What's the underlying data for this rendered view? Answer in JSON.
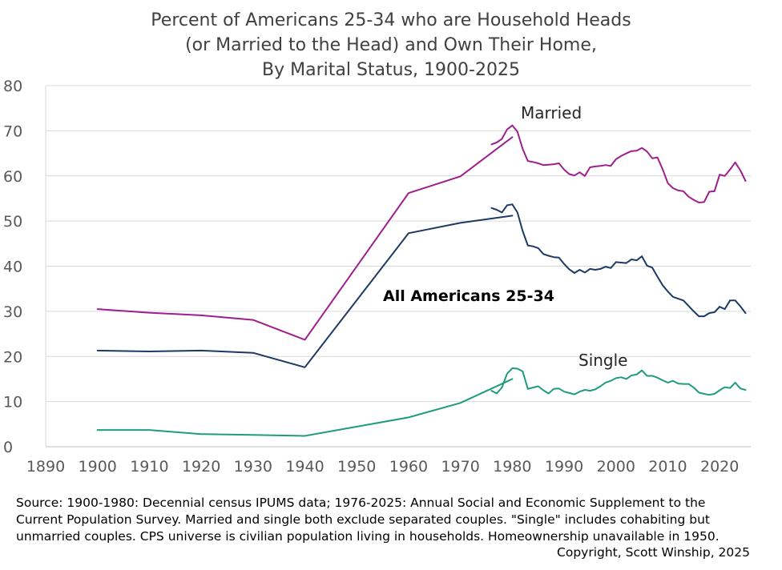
{
  "chart_data": {
    "type": "line",
    "title": [
      "Percent of Americans 25-34 who are Household Heads",
      "(or Married to the Head) and Own Their Home,",
      "By Marital Status, 1900-2025"
    ],
    "xlabel": "",
    "ylabel": "",
    "xlim": [
      1890,
      2026
    ],
    "ylim": [
      0,
      80
    ],
    "xticks": [
      1890,
      1900,
      1910,
      1920,
      1930,
      1940,
      1950,
      1960,
      1970,
      1980,
      1990,
      2000,
      2010,
      2020
    ],
    "yticks": [
      0,
      10,
      20,
      30,
      40,
      50,
      60,
      70,
      80
    ],
    "grid": "horizontal",
    "series": [
      {
        "name": "Married",
        "label": "Married",
        "color": "#9e1f8c",
        "segments": [
          {
            "source": "census",
            "x": [
              1900,
              1910,
              1920,
              1930,
              1940,
              1960,
              1970,
              1980
            ],
            "y": [
              30.5,
              29.7,
              29.1,
              28.1,
              23.7,
              56.2,
              59.9,
              68.6
            ]
          },
          {
            "source": "cps",
            "x": [
              1976,
              1977,
              1978,
              1979,
              1980,
              1981,
              1982,
              1983,
              1984,
              1985,
              1986,
              1987,
              1988,
              1989,
              1990,
              1991,
              1992,
              1993,
              1994,
              1995,
              1996,
              1997,
              1998,
              1999,
              2000,
              2001,
              2002,
              2003,
              2004,
              2005,
              2006,
              2007,
              2008,
              2009,
              2010,
              2011,
              2012,
              2013,
              2014,
              2015,
              2016,
              2017,
              2018,
              2019,
              2020,
              2021,
              2022,
              2023,
              2024,
              2025
            ],
            "y": [
              67.0,
              67.4,
              68.2,
              70.3,
              71.2,
              69.8,
              66.0,
              63.3,
              63.1,
              62.8,
              62.4,
              62.5,
              62.6,
              62.8,
              61.4,
              60.4,
              60.1,
              60.8,
              60.0,
              61.9,
              62.1,
              62.2,
              62.4,
              62.2,
              63.7,
              64.4,
              65.0,
              65.5,
              65.6,
              66.2,
              65.4,
              63.9,
              64.1,
              61.5,
              58.4,
              57.3,
              56.8,
              56.6,
              55.4,
              54.7,
              54.1,
              54.2,
              56.5,
              56.6,
              60.3,
              60.0,
              61.4,
              63.0,
              61.2,
              58.9
            ]
          }
        ]
      },
      {
        "name": "All Americans 25-34",
        "label": "All Americans 25-34",
        "color": "#1b3a64",
        "segments": [
          {
            "source": "census",
            "x": [
              1900,
              1910,
              1920,
              1930,
              1940,
              1960,
              1970,
              1980
            ],
            "y": [
              21.3,
              21.1,
              21.3,
              20.8,
              17.6,
              47.3,
              49.6,
              51.2
            ]
          },
          {
            "source": "cps",
            "x": [
              1976,
              1977,
              1978,
              1979,
              1980,
              1981,
              1982,
              1983,
              1984,
              1985,
              1986,
              1987,
              1988,
              1989,
              1990,
              1991,
              1992,
              1993,
              1994,
              1995,
              1996,
              1997,
              1998,
              1999,
              2000,
              2001,
              2002,
              2003,
              2004,
              2005,
              2006,
              2007,
              2008,
              2009,
              2010,
              2011,
              2012,
              2013,
              2014,
              2015,
              2016,
              2017,
              2018,
              2019,
              2020,
              2021,
              2022,
              2023,
              2024,
              2025
            ],
            "y": [
              52.9,
              52.5,
              51.9,
              53.5,
              53.7,
              51.9,
              47.8,
              44.6,
              44.4,
              44.0,
              42.7,
              42.3,
              42.0,
              41.9,
              40.5,
              39.3,
              38.5,
              39.2,
              38.6,
              39.4,
              39.2,
              39.4,
              39.9,
              39.6,
              40.9,
              40.8,
              40.7,
              41.5,
              41.3,
              42.2,
              40.1,
              39.7,
              37.7,
              35.8,
              34.4,
              33.2,
              32.8,
              32.4,
              31.2,
              30.0,
              28.9,
              28.9,
              29.6,
              29.8,
              31.0,
              30.5,
              32.4,
              32.4,
              31.1,
              29.6
            ]
          }
        ]
      },
      {
        "name": "Single",
        "label": "Single",
        "color": "#1e9c7c",
        "segments": [
          {
            "source": "census",
            "x": [
              1900,
              1910,
              1920,
              1930,
              1940,
              1960,
              1970,
              1980
            ],
            "y": [
              3.7,
              3.7,
              2.8,
              2.6,
              2.4,
              6.5,
              9.7,
              15.0
            ]
          },
          {
            "source": "cps",
            "x": [
              1976,
              1977,
              1978,
              1979,
              1980,
              1981,
              1982,
              1983,
              1984,
              1985,
              1986,
              1987,
              1988,
              1989,
              1990,
              1991,
              1992,
              1993,
              1994,
              1995,
              1996,
              1997,
              1998,
              1999,
              2000,
              2001,
              2002,
              2003,
              2004,
              2005,
              2006,
              2007,
              2008,
              2009,
              2010,
              2011,
              2012,
              2013,
              2014,
              2015,
              2016,
              2017,
              2018,
              2019,
              2020,
              2021,
              2022,
              2023,
              2024,
              2025
            ],
            "y": [
              12.4,
              11.8,
              13.1,
              16.2,
              17.4,
              17.3,
              16.7,
              12.8,
              13.1,
              13.4,
              12.5,
              11.8,
              12.8,
              12.9,
              12.2,
              11.9,
              11.6,
              12.2,
              12.6,
              12.4,
              12.7,
              13.4,
              14.2,
              14.6,
              15.2,
              15.4,
              15.0,
              15.8,
              16.0,
              16.9,
              15.7,
              15.7,
              15.3,
              14.7,
              14.2,
              14.6,
              14.0,
              13.9,
              13.9,
              13.1,
              12.0,
              11.7,
              11.5,
              11.7,
              12.5,
              13.2,
              13.0,
              14.2,
              12.9,
              12.6
            ]
          }
        ]
      }
    ]
  },
  "source_note": "Source: 1900-1980: Decennial census IPUMS data; 1976-2025: Annual Social and Economic Supplement to the Current Population Survey. Married and single both exclude separated couples. \"Single\" includes cohabiting but unmarried couples. CPS universe is civilian population living in households. Homeownership unavailable in 1950.",
  "copyright": "Copyright, Scott Winship, 2025"
}
